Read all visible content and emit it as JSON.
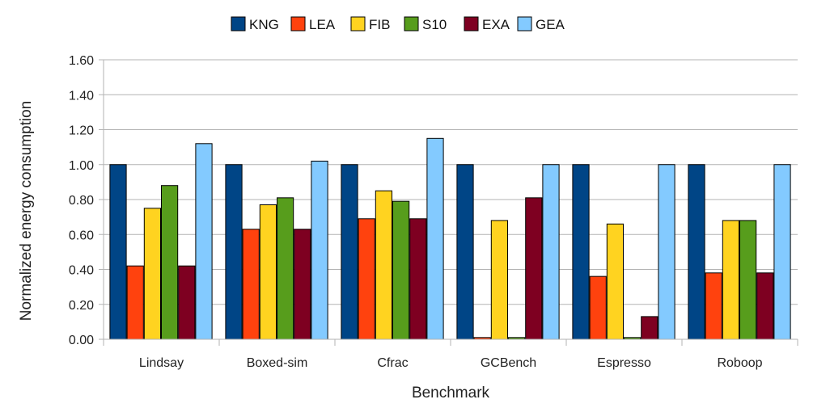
{
  "chart_data": {
    "type": "bar",
    "title": "",
    "xlabel": "Benchmark",
    "ylabel": "Normalized energy consumption",
    "ylim": [
      0,
      1.6
    ],
    "ytick_step": 0.2,
    "ytick_labels": [
      "0.00",
      "0.20",
      "0.40",
      "0.60",
      "0.80",
      "1.00",
      "1.20",
      "1.40",
      "1.60"
    ],
    "grid": "horizontal",
    "legend_position": "top-center",
    "categories": [
      "Lindsay",
      "Boxed-sim",
      "Cfrac",
      "GCBench",
      "Espresso",
      "Roboop"
    ],
    "series": [
      {
        "name": "KNG",
        "color": "#004586",
        "values": [
          1.0,
          1.0,
          1.0,
          1.0,
          1.0,
          1.0
        ]
      },
      {
        "name": "LEA",
        "color": "#ff420e",
        "values": [
          0.42,
          0.63,
          0.69,
          0.01,
          0.36,
          0.38
        ]
      },
      {
        "name": "FIB",
        "color": "#ffd320",
        "values": [
          0.75,
          0.77,
          0.85,
          0.68,
          0.66,
          0.68
        ]
      },
      {
        "name": "S10",
        "color": "#579d1c",
        "values": [
          0.88,
          0.81,
          0.79,
          0.01,
          0.01,
          0.68
        ]
      },
      {
        "name": "EXA",
        "color": "#7e0021",
        "values": [
          0.42,
          0.63,
          0.69,
          0.81,
          0.13,
          0.38
        ]
      },
      {
        "name": "GEA",
        "color": "#83caff",
        "values": [
          1.12,
          1.02,
          1.15,
          1.0,
          1.0,
          1.0
        ]
      }
    ]
  }
}
